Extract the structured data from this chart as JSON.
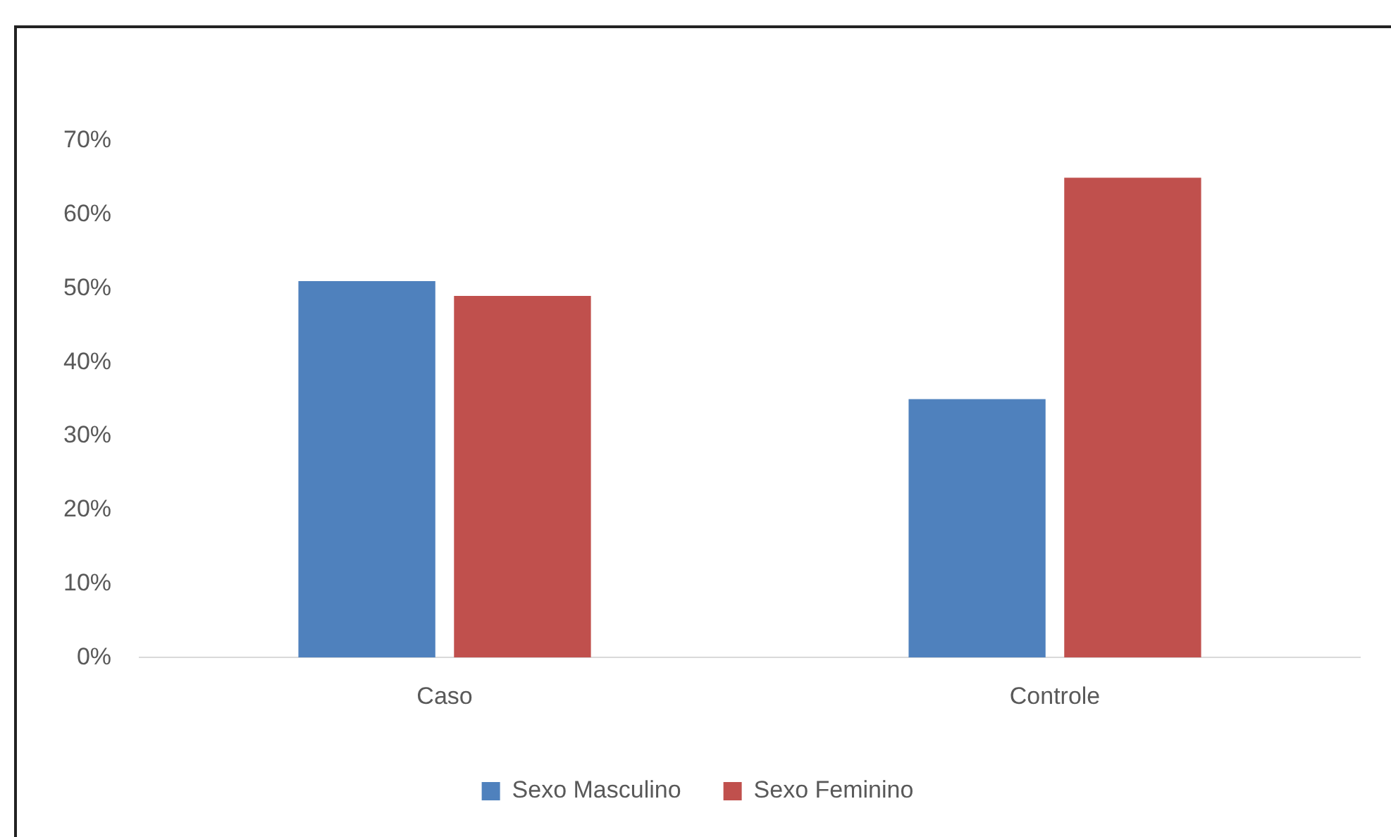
{
  "chart_data": {
    "type": "bar",
    "categories": [
      "Caso",
      "Controle"
    ],
    "series": [
      {
        "name": "Sexo Masculino",
        "color": "#4f81bd",
        "values": [
          51,
          35
        ]
      },
      {
        "name": "Sexo Feminino",
        "color": "#c0504d",
        "values": [
          49,
          65
        ]
      }
    ],
    "ylim": [
      0,
      70
    ],
    "yticks": [
      {
        "value": 0,
        "label": "0%"
      },
      {
        "value": 10,
        "label": "10%"
      },
      {
        "value": 20,
        "label": "20%"
      },
      {
        "value": 30,
        "label": "30%"
      },
      {
        "value": 40,
        "label": "40%"
      },
      {
        "value": 50,
        "label": "50%"
      },
      {
        "value": 60,
        "label": "60%"
      },
      {
        "value": 70,
        "label": "70%"
      }
    ],
    "legend": "bottom"
  }
}
